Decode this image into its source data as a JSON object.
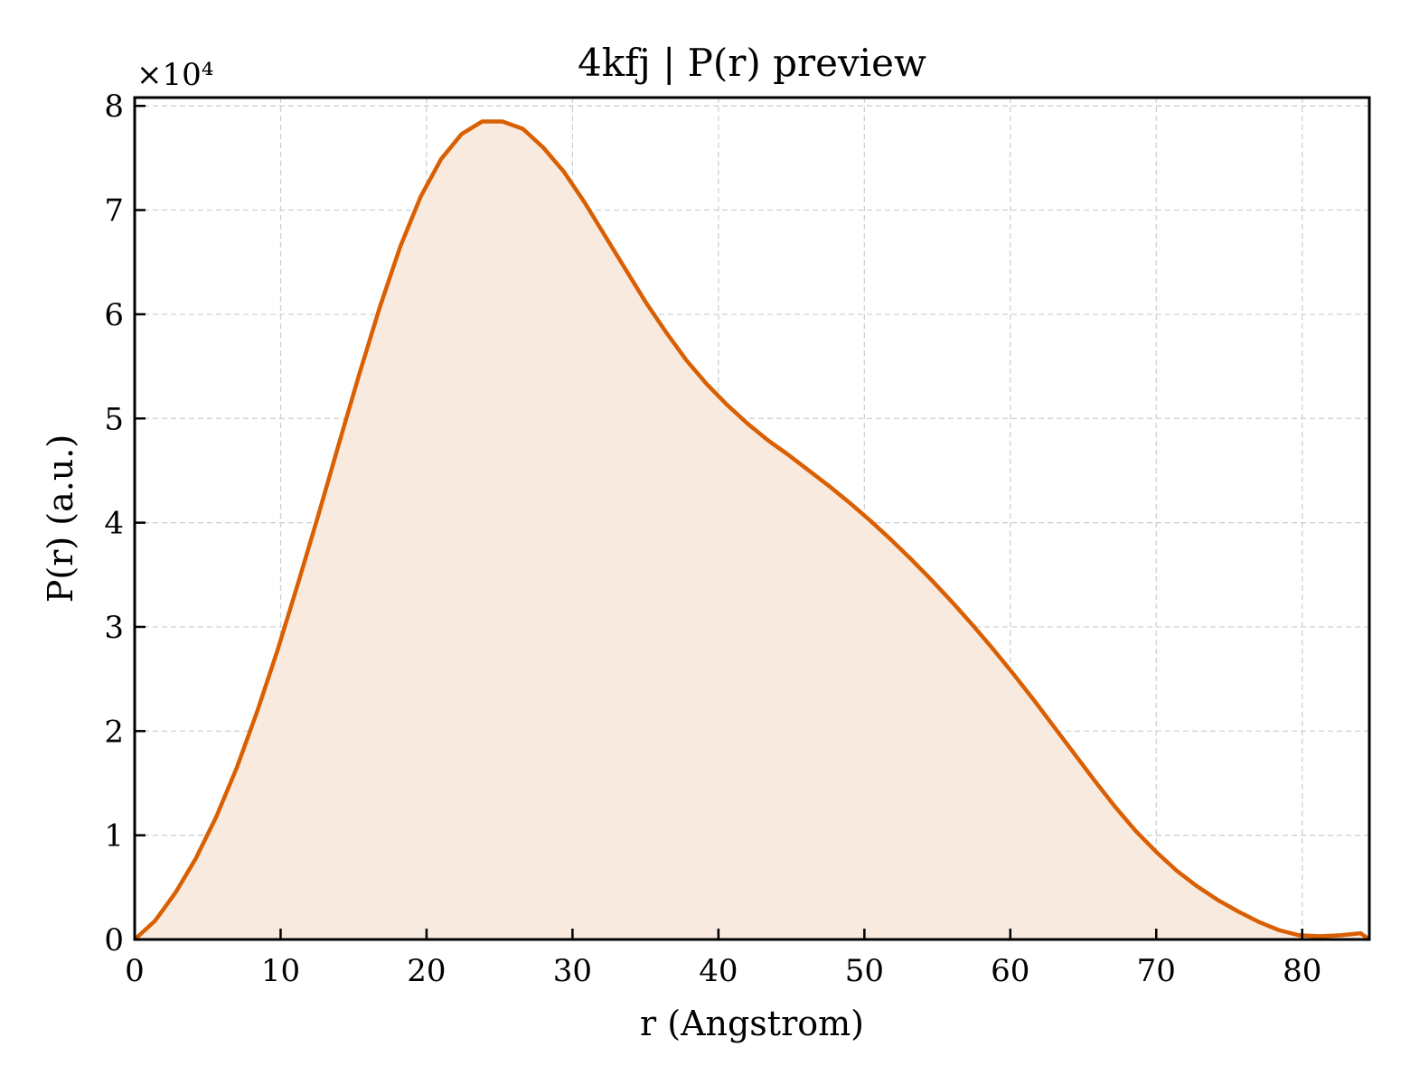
{
  "chart_data": {
    "type": "area",
    "title": "4kfj | P(r) preview",
    "xlabel": "r (Angstrom)",
    "ylabel": "P(r) (a.u.)",
    "y_offset_label": "×10⁴",
    "y_scale": 10000,
    "xlim": [
      0,
      84.6
    ],
    "ylim": [
      0,
      80800
    ],
    "x_ticks": [
      0,
      10,
      20,
      30,
      40,
      50,
      60,
      70,
      80
    ],
    "y_ticks": [
      0,
      1,
      2,
      3,
      4,
      5,
      6,
      7,
      8
    ],
    "grid": true,
    "line_color": "#d95f02",
    "fill_color": "#f9eadf",
    "series": [
      {
        "x": [
          0,
          1.4,
          2.8,
          4.2,
          5.6,
          7.0,
          8.4,
          9.8,
          11.2,
          12.6,
          14.0,
          15.4,
          16.8,
          18.2,
          19.6,
          21.0,
          22.4,
          23.8,
          25.2,
          26.6,
          28.0,
          29.4,
          30.8,
          32.2,
          33.6,
          35.0,
          36.4,
          37.8,
          39.2,
          40.6,
          42.0,
          43.4,
          44.8,
          46.2,
          47.6,
          49.0,
          50.4,
          51.8,
          53.2,
          54.6,
          56.0,
          57.4,
          58.8,
          60.2,
          61.6,
          63.0,
          64.4,
          65.8,
          67.2,
          68.6,
          70.0,
          71.4,
          72.8,
          74.2,
          75.6,
          77.0,
          78.4,
          79.8,
          81.2,
          82.6,
          84.0,
          84.6
        ],
        "y": [
          0,
          1800,
          4500,
          7800,
          11800,
          16500,
          21900,
          27800,
          34200,
          40800,
          47600,
          54300,
          60700,
          66500,
          71300,
          74900,
          77300,
          78500,
          78500,
          77800,
          76000,
          73700,
          70800,
          67600,
          64400,
          61200,
          58300,
          55600,
          53300,
          51300,
          49500,
          47900,
          46500,
          45000,
          43500,
          41900,
          40200,
          38400,
          36500,
          34500,
          32400,
          30200,
          27900,
          25500,
          23000,
          20400,
          17800,
          15200,
          12700,
          10400,
          8400,
          6600,
          5100,
          3800,
          2700,
          1700,
          900,
          400,
          300,
          400,
          600,
          0
        ]
      }
    ]
  }
}
